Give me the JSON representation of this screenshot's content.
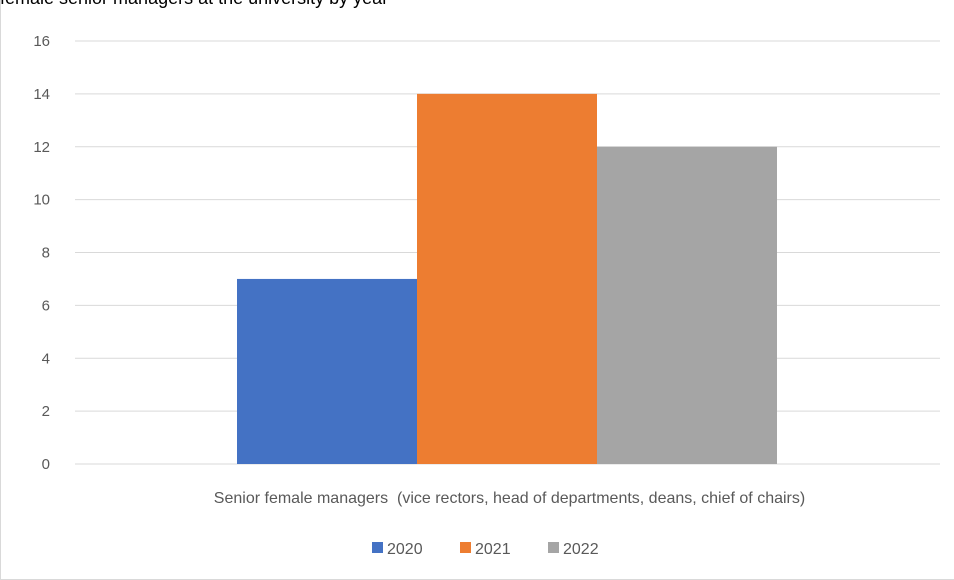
{
  "caption_fragment": "female senior managers at the university by year",
  "chart_data": {
    "type": "bar",
    "categories": [
      "Senior female managers  (vice rectors, head of departments, deans, chief of chairs)"
    ],
    "series": [
      {
        "name": "2020",
        "values": [
          7
        ],
        "color": "#4472c4"
      },
      {
        "name": "2021",
        "values": [
          14
        ],
        "color": "#ed7d31"
      },
      {
        "name": "2022",
        "values": [
          12
        ],
        "color": "#a5a5a5"
      }
    ],
    "ylim": [
      0,
      16
    ],
    "yticks": [
      0,
      2,
      4,
      6,
      8,
      10,
      12,
      14,
      16
    ],
    "grid": true,
    "legend": "bottom"
  }
}
